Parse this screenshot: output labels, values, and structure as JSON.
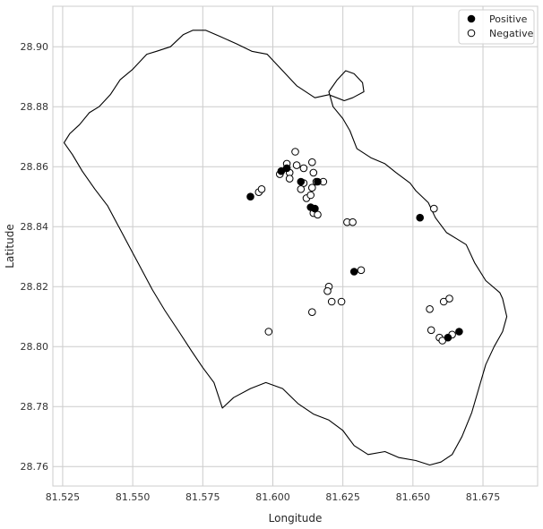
{
  "chart_data": {
    "type": "scatter",
    "title": "",
    "xlabel": "Longitude",
    "ylabel": "Latitude",
    "xlim": [
      81.5215,
      81.6945
    ],
    "ylim": [
      28.7535,
      28.9135
    ],
    "x_ticks": [
      "81.525",
      "81.550",
      "81.575",
      "81.600",
      "81.625",
      "81.650",
      "81.675"
    ],
    "x_tick_values": [
      81.525,
      81.55,
      81.575,
      81.6,
      81.625,
      81.65,
      81.675
    ],
    "y_ticks": [
      "28.76",
      "28.78",
      "28.80",
      "28.82",
      "28.84",
      "28.86",
      "28.88",
      "28.90"
    ],
    "y_tick_values": [
      28.76,
      28.78,
      28.8,
      28.82,
      28.84,
      28.86,
      28.88,
      28.9
    ],
    "grid": true,
    "legend_position": "top-right",
    "boundary": [
      [
        81.5255,
        28.868
      ],
      [
        81.5285,
        28.864
      ],
      [
        81.532,
        28.8585
      ],
      [
        81.5365,
        28.8525
      ],
      [
        81.541,
        28.847
      ],
      [
        81.545,
        28.84
      ],
      [
        81.549,
        28.833
      ],
      [
        81.553,
        28.826
      ],
      [
        81.557,
        28.819
      ],
      [
        81.5615,
        28.812
      ],
      [
        81.5665,
        28.805
      ],
      [
        81.571,
        28.7985
      ],
      [
        81.575,
        28.793
      ],
      [
        81.579,
        28.788
      ],
      [
        81.582,
        28.7795
      ],
      [
        81.586,
        28.783
      ],
      [
        81.592,
        28.786
      ],
      [
        81.5975,
        28.788
      ],
      [
        81.6035,
        28.786
      ],
      [
        81.609,
        28.781
      ],
      [
        81.6145,
        28.7775
      ],
      [
        81.62,
        28.7755
      ],
      [
        81.625,
        28.772
      ],
      [
        81.629,
        28.767
      ],
      [
        81.634,
        28.764
      ],
      [
        81.64,
        28.765
      ],
      [
        81.645,
        28.763
      ],
      [
        81.651,
        28.762
      ],
      [
        81.656,
        28.7605
      ],
      [
        81.66,
        28.7615
      ],
      [
        81.664,
        28.764
      ],
      [
        81.6675,
        28.77
      ],
      [
        81.671,
        28.778
      ],
      [
        81.6735,
        28.786
      ],
      [
        81.676,
        28.794
      ],
      [
        81.679,
        28.8
      ],
      [
        81.682,
        28.805
      ],
      [
        81.6835,
        28.81
      ],
      [
        81.682,
        28.816
      ],
      [
        81.681,
        28.818
      ],
      [
        81.676,
        28.822
      ],
      [
        81.672,
        28.828
      ],
      [
        81.669,
        28.834
      ],
      [
        81.662,
        28.838
      ],
      [
        81.658,
        28.843
      ],
      [
        81.6555,
        28.848
      ],
      [
        81.651,
        28.852
      ],
      [
        81.649,
        28.8545
      ],
      [
        81.644,
        28.858
      ],
      [
        81.64,
        28.861
      ],
      [
        81.635,
        28.863
      ],
      [
        81.63,
        28.866
      ],
      [
        81.6275,
        28.872
      ],
      [
        81.625,
        28.876
      ],
      [
        81.6215,
        28.88
      ],
      [
        81.62,
        28.885
      ],
      [
        81.623,
        28.889
      ],
      [
        81.626,
        28.892
      ],
      [
        81.629,
        28.891
      ],
      [
        81.632,
        28.888
      ],
      [
        81.6325,
        28.885
      ],
      [
        81.6285,
        28.883
      ],
      [
        81.6255,
        28.882
      ],
      [
        81.62,
        28.884
      ],
      [
        81.615,
        28.883
      ],
      [
        81.6085,
        28.887
      ],
      [
        81.603,
        28.8925
      ],
      [
        81.598,
        28.8975
      ],
      [
        81.5925,
        28.8985
      ],
      [
        81.587,
        28.901
      ],
      [
        81.581,
        28.9035
      ],
      [
        81.576,
        28.9055
      ],
      [
        81.5715,
        28.9055
      ],
      [
        81.568,
        28.904
      ],
      [
        81.5635,
        28.9
      ],
      [
        81.5585,
        28.8985
      ],
      [
        81.555,
        28.8975
      ],
      [
        81.55,
        28.8925
      ],
      [
        81.5455,
        28.889
      ],
      [
        81.542,
        28.884
      ],
      [
        81.538,
        28.88
      ],
      [
        81.5345,
        28.878
      ],
      [
        81.531,
        28.874
      ],
      [
        81.5275,
        28.871
      ],
      [
        81.5255,
        28.868
      ]
    ],
    "series": [
      {
        "name": "Positive",
        "points": [
          [
            81.592,
            28.85
          ],
          [
            81.603,
            28.8585
          ],
          [
            81.605,
            28.8595
          ],
          [
            81.61,
            28.855
          ],
          [
            81.616,
            28.855
          ],
          [
            81.6135,
            28.8465
          ],
          [
            81.615,
            28.846
          ],
          [
            81.629,
            28.825
          ],
          [
            81.6525,
            28.843
          ],
          [
            81.6625,
            28.803
          ],
          [
            81.6665,
            28.805
          ]
        ]
      },
      {
        "name": "Negative",
        "points": [
          [
            81.595,
            28.8515
          ],
          [
            81.596,
            28.8525
          ],
          [
            81.6025,
            28.8575
          ],
          [
            81.605,
            28.861
          ],
          [
            81.606,
            28.858
          ],
          [
            81.606,
            28.856
          ],
          [
            81.608,
            28.865
          ],
          [
            81.6085,
            28.8605
          ],
          [
            81.611,
            28.8595
          ],
          [
            81.611,
            28.8545
          ],
          [
            81.61,
            28.8525
          ],
          [
            81.612,
            28.8495
          ],
          [
            81.6135,
            28.8505
          ],
          [
            81.614,
            28.8615
          ],
          [
            81.6145,
            28.858
          ],
          [
            81.614,
            28.853
          ],
          [
            81.6155,
            28.855
          ],
          [
            81.6145,
            28.8445
          ],
          [
            81.616,
            28.844
          ],
          [
            81.618,
            28.855
          ],
          [
            81.6265,
            28.8415
          ],
          [
            81.6285,
            28.8415
          ],
          [
            81.6315,
            28.8255
          ],
          [
            81.62,
            28.82
          ],
          [
            81.6195,
            28.8185
          ],
          [
            81.621,
            28.815
          ],
          [
            81.6245,
            28.815
          ],
          [
            81.614,
            28.8115
          ],
          [
            81.5985,
            28.805
          ],
          [
            81.6575,
            28.846
          ],
          [
            81.656,
            28.8125
          ],
          [
            81.661,
            28.815
          ],
          [
            81.663,
            28.816
          ],
          [
            81.6565,
            28.8055
          ],
          [
            81.6595,
            28.803
          ],
          [
            81.6605,
            28.802
          ],
          [
            81.664,
            28.804
          ]
        ]
      }
    ]
  }
}
